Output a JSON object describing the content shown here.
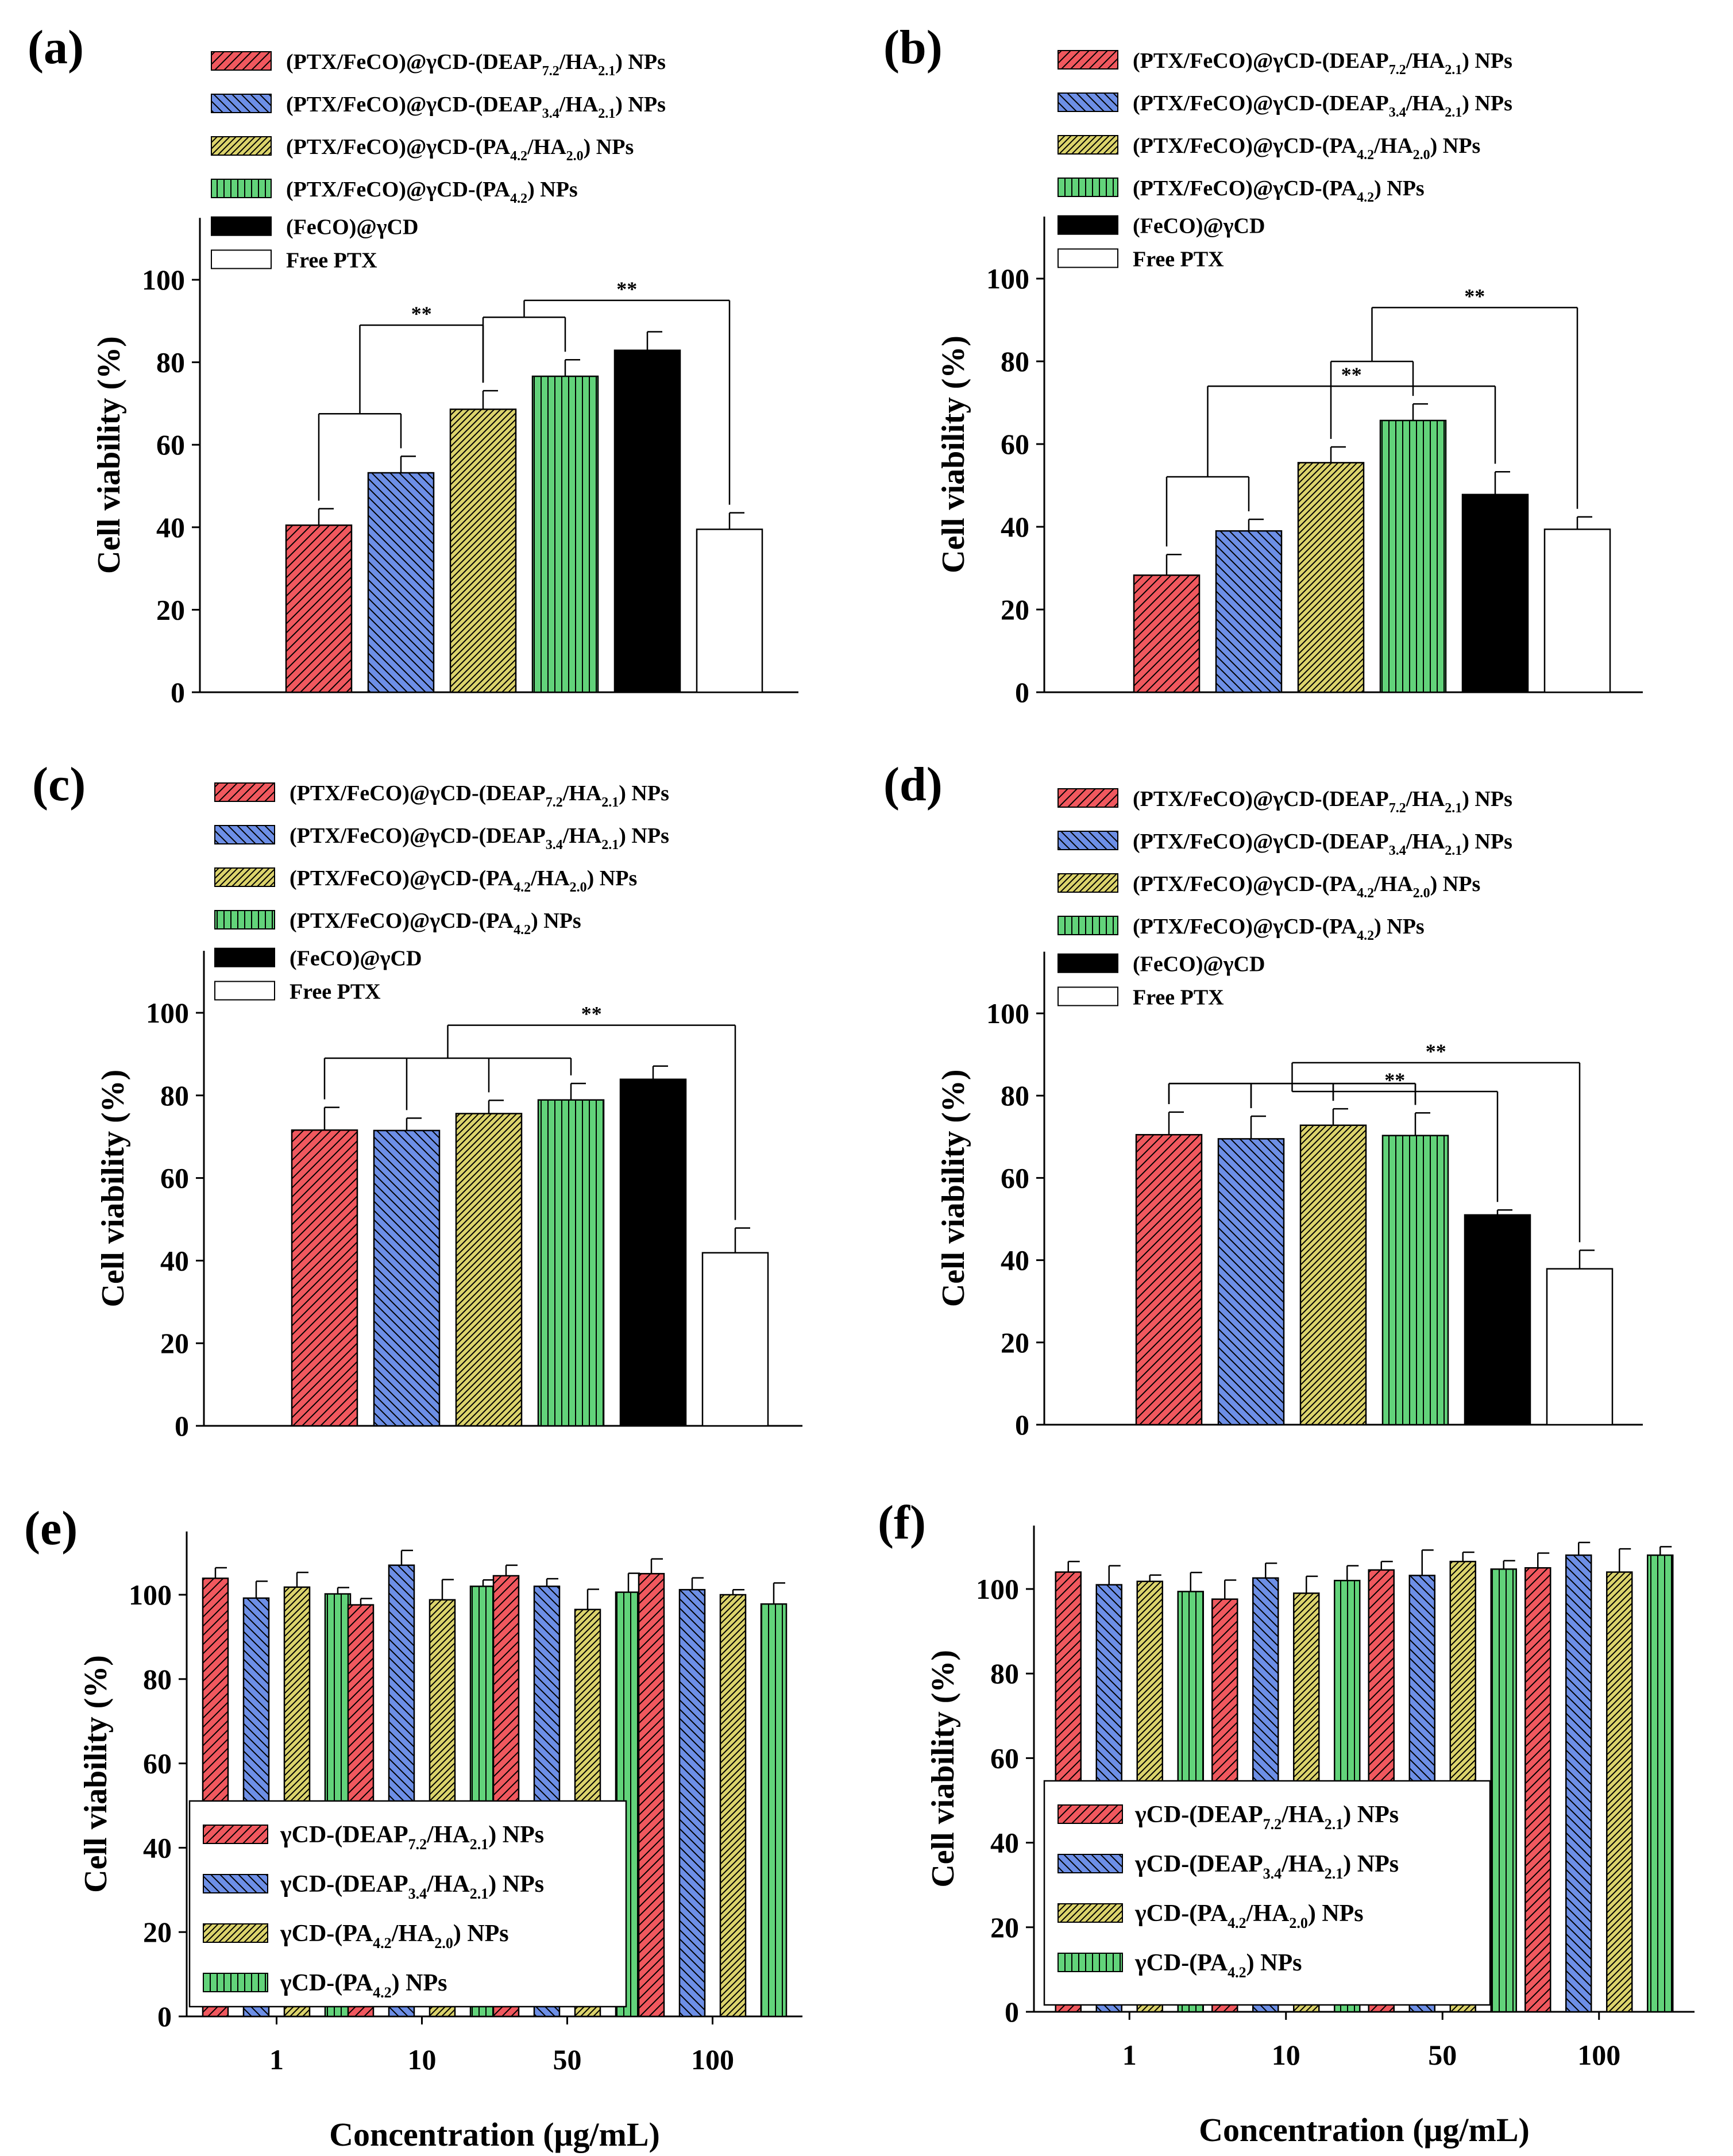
{
  "figure": {
    "colors": {
      "red": "#f0585e",
      "blue": "#6d8fe6",
      "yellow": "#dbd36c",
      "green": "#62d37a",
      "black": "#000000",
      "white": "#ffffff"
    },
    "panels_top_legend": [
      {
        "label": "(PTX/FeCO)@γCD-(DEAP7.2/HA2.1) NPs",
        "parts": [
          [
            "(PTX/FeCO)@γCD-(DEAP",
            ""
          ],
          [
            "7.2",
            "sub"
          ],
          [
            "/HA",
            ""
          ],
          [
            "2.1",
            "sub"
          ],
          [
            ") NPs",
            ""
          ]
        ],
        "color": "red",
        "pattern": "diag-right"
      },
      {
        "label": "(PTX/FeCO)@γCD-(DEAP3.4/HA2.1) NPs",
        "parts": [
          [
            "(PTX/FeCO)@γCD-(DEAP",
            ""
          ],
          [
            "3.4",
            "sub"
          ],
          [
            "/HA",
            ""
          ],
          [
            "2.1",
            "sub"
          ],
          [
            ") NPs",
            ""
          ]
        ],
        "color": "blue",
        "pattern": "diag-left"
      },
      {
        "label": "(PTX/FeCO)@γCD-(PA4.2/HA2.0) NPs",
        "parts": [
          [
            "(PTX/FeCO)@γCD-(PA",
            ""
          ],
          [
            "4.2",
            "sub"
          ],
          [
            "/HA",
            ""
          ],
          [
            "2.0",
            "sub"
          ],
          [
            ") NPs",
            ""
          ]
        ],
        "color": "yellow",
        "pattern": "diag-right-dense"
      },
      {
        "label": "(PTX/FeCO)@γCD-(PA4.2) NPs",
        "parts": [
          [
            "(PTX/FeCO)@γCD-(PA",
            ""
          ],
          [
            "4.2",
            "sub"
          ],
          [
            ") NPs",
            ""
          ]
        ],
        "color": "green",
        "pattern": "vertical"
      },
      {
        "label": "(FeCO)@γCD",
        "parts": [
          [
            "(FeCO)@γCD",
            ""
          ]
        ],
        "color": "black",
        "pattern": "solid"
      },
      {
        "label": "Free PTX",
        "parts": [
          [
            "Free PTX",
            ""
          ]
        ],
        "color": "white",
        "pattern": "solid"
      }
    ],
    "panels_bottom_legend": [
      {
        "label": "γCD-(DEAP7.2/HA2.1) NPs",
        "parts": [
          [
            "γCD-(DEAP",
            ""
          ],
          [
            "7.2",
            "sub"
          ],
          [
            "/HA",
            ""
          ],
          [
            "2.1",
            "sub"
          ],
          [
            ") NPs",
            ""
          ]
        ],
        "color": "red",
        "pattern": "diag-right"
      },
      {
        "label": "γCD-(DEAP3.4/HA2.1) NPs",
        "parts": [
          [
            "γCD-(DEAP",
            ""
          ],
          [
            "3.4",
            "sub"
          ],
          [
            "/HA",
            ""
          ],
          [
            "2.1",
            "sub"
          ],
          [
            ") NPs",
            ""
          ]
        ],
        "color": "blue",
        "pattern": "diag-left"
      },
      {
        "label": "γCD-(PA4.2/HA2.0) NPs",
        "parts": [
          [
            "γCD-(PA",
            ""
          ],
          [
            "4.2",
            "sub"
          ],
          [
            "/HA",
            ""
          ],
          [
            "2.0",
            "sub"
          ],
          [
            ") NPs",
            ""
          ]
        ],
        "color": "yellow",
        "pattern": "diag-right-dense"
      },
      {
        "label": "γCD-(PA4.2) NPs",
        "parts": [
          [
            "γCD-(PA",
            ""
          ],
          [
            "4.2",
            "sub"
          ],
          [
            ") NPs",
            ""
          ]
        ],
        "color": "green",
        "pattern": "vertical"
      }
    ],
    "significance_label": "**"
  },
  "chart_data": [
    {
      "panel": "(a)",
      "type": "bar",
      "ylabel": "Cell viability (%)",
      "xlabel": "",
      "ylim": [
        0,
        115
      ],
      "yticks": [
        0,
        20,
        40,
        60,
        80,
        100
      ],
      "series_names": [
        "(PTX/FeCO)@γCD-(DEAP7.2/HA2.1) NPs",
        "(PTX/FeCO)@γCD-(DEAP3.4/HA2.1) NPs",
        "(PTX/FeCO)@γCD-(PA4.2/HA2.0) NPs",
        "(PTX/FeCO)@γCD-(PA4.2) NPs",
        "(FeCO)@γCD",
        "Free PTX"
      ],
      "values": [
        40.5,
        53.2,
        68.6,
        76.6,
        82.9,
        39.5
      ],
      "errors": [
        4.0,
        4.0,
        4.5,
        4.0,
        4.5,
        4.0
      ],
      "annotations": [
        {
          "type": "bracket",
          "from": [
            0,
            1
          ],
          "to": 2,
          "level": 89,
          "label": "**"
        },
        {
          "type": "bracket",
          "from": [
            2,
            3
          ],
          "to": 5,
          "level": 95,
          "label": "**"
        }
      ]
    },
    {
      "panel": "(b)",
      "type": "bar",
      "ylabel": "Cell viability (%)",
      "xlabel": "",
      "ylim": [
        0,
        115
      ],
      "yticks": [
        0,
        20,
        40,
        60,
        80,
        100
      ],
      "series_names": [
        "(PTX/FeCO)@γCD-(DEAP7.2/HA2.1) NPs",
        "(PTX/FeCO)@γCD-(DEAP3.4/HA2.1) NPs",
        "(PTX/FeCO)@γCD-(PA4.2/HA2.0) NPs",
        "(PTX/FeCO)@γCD-(PA4.2) NPs",
        "(FeCO)@γCD",
        "Free PTX"
      ],
      "values": [
        28.3,
        39.0,
        55.5,
        65.7,
        47.8,
        39.4
      ],
      "errors": [
        5.0,
        2.8,
        3.8,
        4.0,
        5.5,
        3.0
      ],
      "annotations": [
        {
          "type": "bracket",
          "from": [
            0,
            1
          ],
          "to": 4,
          "level": 74,
          "label": "**"
        },
        {
          "type": "bracket",
          "from": [
            2,
            3
          ],
          "to": 5,
          "level": 93,
          "label": "**"
        }
      ]
    },
    {
      "panel": "(c)",
      "type": "bar",
      "ylabel": "Cell viability (%)",
      "xlabel": "",
      "ylim": [
        0,
        115
      ],
      "yticks": [
        0,
        20,
        40,
        60,
        80,
        100
      ],
      "series_names": [
        "(PTX/FeCO)@γCD-(DEAP7.2/HA2.1) NPs",
        "(PTX/FeCO)@γCD-(DEAP3.4/HA2.1) NPs",
        "(PTX/FeCO)@γCD-(PA4.2/HA2.0) NPs",
        "(PTX/FeCO)@γCD-(PA4.2) NPs",
        "(FeCO)@γCD",
        "Free PTX"
      ],
      "values": [
        71.6,
        71.5,
        75.6,
        78.9,
        83.9,
        41.9
      ],
      "errors": [
        5.5,
        3.0,
        3.2,
        4.0,
        3.2,
        6.0
      ],
      "annotations": [
        {
          "type": "bracket",
          "from": [
            0,
            1,
            2,
            3
          ],
          "to": 5,
          "level": 97,
          "label": "**"
        }
      ]
    },
    {
      "panel": "(d)",
      "type": "bar",
      "ylabel": "Cell viability (%)",
      "xlabel": "",
      "ylim": [
        0,
        115
      ],
      "yticks": [
        0,
        20,
        40,
        60,
        80,
        100
      ],
      "series_names": [
        "(PTX/FeCO)@γCD-(DEAP7.2/HA2.1) NPs",
        "(PTX/FeCO)@γCD-(DEAP3.4/HA2.1) NPs",
        "(PTX/FeCO)@γCD-(PA4.2/HA2.0) NPs",
        "(PTX/FeCO)@γCD-(PA4.2) NPs",
        "(FeCO)@γCD",
        "Free PTX"
      ],
      "values": [
        70.5,
        69.5,
        72.8,
        70.3,
        51.0,
        37.9
      ],
      "errors": [
        5.5,
        5.5,
        4.0,
        5.5,
        1.2,
        4.5
      ],
      "annotations": [
        {
          "type": "bracket",
          "from": [
            0,
            1,
            2,
            3
          ],
          "to": 4,
          "level": 81,
          "label": "**"
        },
        {
          "type": "bracket",
          "from": [
            0,
            1,
            2,
            3
          ],
          "to": 5,
          "level": 88,
          "label": "**"
        }
      ]
    },
    {
      "panel": "(e)",
      "type": "bar",
      "ylabel": "Cell viability (%)",
      "xlabel": "Concentration (μg/mL)",
      "ylim": [
        0,
        115
      ],
      "yticks": [
        0,
        20,
        40,
        60,
        80,
        100
      ],
      "categories": [
        "1",
        "10",
        "50",
        "100"
      ],
      "series": [
        {
          "name": "γCD-(DEAP7.2/HA2.1) NPs",
          "values": [
            103.9,
            97.6,
            104.5,
            105.0
          ],
          "errors": [
            2.5,
            1.5,
            2.5,
            3.5
          ]
        },
        {
          "name": "γCD-(DEAP3.4/HA2.1) NPs",
          "values": [
            99.2,
            107.0,
            102.0,
            101.2
          ],
          "errors": [
            4.0,
            3.5,
            1.8,
            2.8
          ]
        },
        {
          "name": "γCD-(PA4.2/HA2.0) NPs",
          "values": [
            101.8,
            98.8,
            96.5,
            100.0
          ],
          "errors": [
            3.5,
            4.8,
            4.8,
            1.2
          ]
        },
        {
          "name": "γCD-(PA4.2) NPs",
          "values": [
            100.2,
            102.0,
            100.6,
            97.8
          ],
          "errors": [
            1.5,
            1.5,
            4.5,
            5.0
          ]
        }
      ]
    },
    {
      "panel": "(f)",
      "type": "bar",
      "ylabel": "Cell viability (%)",
      "xlabel": "Concentration (μg/mL)",
      "ylim": [
        0,
        115
      ],
      "yticks": [
        0,
        20,
        40,
        60,
        80,
        100
      ],
      "categories": [
        "1",
        "10",
        "50",
        "100"
      ],
      "series": [
        {
          "name": "γCD-(DEAP7.2/HA2.1) NPs",
          "values": [
            104.0,
            97.6,
            104.5,
            105.0
          ],
          "errors": [
            2.5,
            4.5,
            2.0,
            3.5
          ]
        },
        {
          "name": "γCD-(DEAP3.4/HA2.1) NPs",
          "values": [
            101.0,
            102.6,
            103.2,
            108.0
          ],
          "errors": [
            4.5,
            3.5,
            6.0,
            3.0
          ]
        },
        {
          "name": "γCD-(PA4.2/HA2.0) NPs",
          "values": [
            101.8,
            99.0,
            106.5,
            104.0
          ],
          "errors": [
            1.5,
            4.0,
            2.2,
            5.5
          ]
        },
        {
          "name": "γCD-(PA4.2) NPs",
          "values": [
            99.4,
            102.0,
            104.7,
            108.0
          ],
          "errors": [
            4.5,
            3.5,
            2.0,
            2.0
          ]
        }
      ]
    }
  ]
}
